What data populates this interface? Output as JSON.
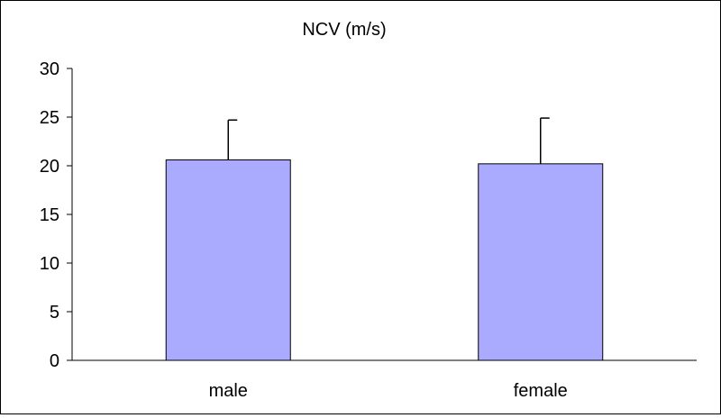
{
  "chart_data": {
    "type": "bar",
    "title": "NCV (m/s)",
    "xlabel": "",
    "ylabel": "",
    "categories": [
      "male",
      "female"
    ],
    "values": [
      20.6,
      20.2
    ],
    "error_plus": [
      4.1,
      4.7
    ],
    "ylim": [
      0,
      30
    ],
    "yticks": [
      0,
      5,
      10,
      15,
      20,
      25,
      30
    ],
    "ytick_labels": [
      "0",
      "5",
      "10",
      "15",
      "20",
      "25",
      "30"
    ],
    "grid": false,
    "legend": "none",
    "bar_color": "#aaaaff",
    "bar_edge_color": "#000000"
  }
}
